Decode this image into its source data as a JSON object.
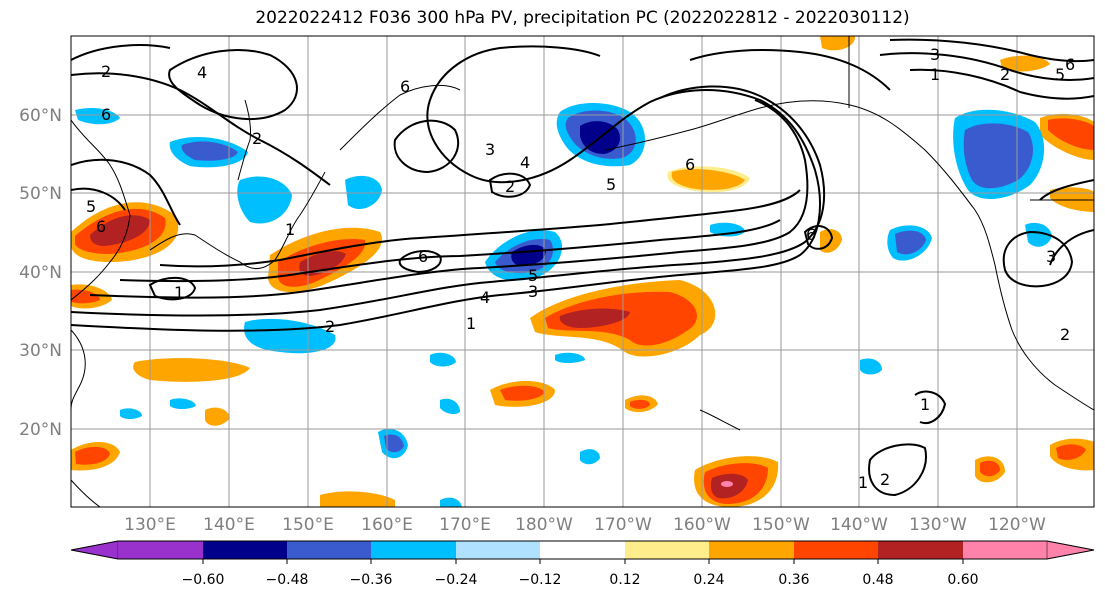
{
  "title": "2022022412 F036 300 hPa PV, precipitation PC (2022022812 - 2022030112)",
  "map": {
    "lat_labels": [
      "60°N",
      "50°N",
      "40°N",
      "30°N",
      "20°N"
    ],
    "lon_labels": [
      "130°E",
      "140°E",
      "150°E",
      "160°E",
      "170°E",
      "180°W",
      "170°W",
      "160°W",
      "150°W",
      "140°W",
      "130°W",
      "120°W"
    ],
    "pv_contour_labels": [
      "1",
      "2",
      "3",
      "4",
      "5",
      "6"
    ]
  },
  "colorbar": {
    "ticks": [
      "−0.60",
      "−0.48",
      "−0.36",
      "−0.24",
      "−0.12",
      "0.12",
      "0.24",
      "0.36",
      "0.48",
      "0.60"
    ],
    "colors": [
      "#9932cc",
      "#00008b",
      "#3a5bcd",
      "#00bfff",
      "#b0e2ff",
      "#ffffff",
      "#ffec8b",
      "#ffa500",
      "#ff4500",
      "#b22222",
      "#ff82ab"
    ]
  }
}
